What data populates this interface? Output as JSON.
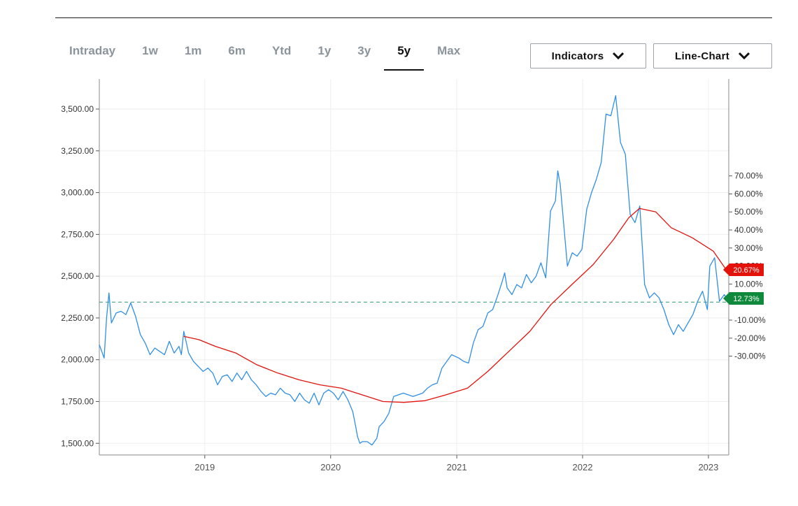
{
  "range_tabs": [
    {
      "label": "Intraday"
    },
    {
      "label": "1w"
    },
    {
      "label": "1m"
    },
    {
      "label": "6m"
    },
    {
      "label": "Ytd"
    },
    {
      "label": "1y"
    },
    {
      "label": "3y"
    },
    {
      "label": "5y"
    },
    {
      "label": "Max"
    }
  ],
  "active_range": "5y",
  "controls": {
    "indicators_label": "Indicators",
    "chart_type_label": "Line-Chart",
    "chevron_icon": "chevron-down-icon"
  },
  "colors": {
    "price_line": "#2f8fe6",
    "moving_average": "#e3120b",
    "reference_line": "#2a9a6a",
    "percent_flag": "#e3120b",
    "last_flag": "#0f8a3c"
  },
  "chart_data": {
    "type": "line",
    "title": "",
    "x_tick_labels": [
      "2019",
      "2020",
      "2021",
      "2022",
      "2023"
    ],
    "left_axis": {
      "ylim": [
        1430,
        3680
      ],
      "tick_labels": [
        "3,500.00",
        "3,250.00",
        "3,000.00",
        "2,750.00",
        "2,500.00",
        "2,250.00",
        "2,000.00",
        "1,750.00",
        "1,500.00"
      ]
    },
    "right_axis": {
      "tick_labels": [
        "70.00%",
        "60.00%",
        "50.00%",
        "40.00%",
        "30.00%",
        "20.00%",
        "10.00%",
        "0.00%",
        "-10.00%",
        "-20.00%",
        "-30.00%"
      ]
    },
    "reference_line": {
      "value": 2345,
      "style": "dashed"
    },
    "flags": {
      "moving_average_value": "20.67%",
      "last_value": "12.73%"
    },
    "series": [
      {
        "key": "price",
        "points": [
          [
            "2018-03-01",
            2090
          ],
          [
            "2018-03-15",
            2010
          ],
          [
            "2018-03-22",
            2250
          ],
          [
            "2018-03-29",
            2400
          ],
          [
            "2018-04-05",
            2220
          ],
          [
            "2018-04-19",
            2280
          ],
          [
            "2018-05-03",
            2290
          ],
          [
            "2018-05-17",
            2270
          ],
          [
            "2018-05-31",
            2340
          ],
          [
            "2018-06-14",
            2260
          ],
          [
            "2018-06-28",
            2150
          ],
          [
            "2018-07-12",
            2100
          ],
          [
            "2018-07-26",
            2030
          ],
          [
            "2018-08-09",
            2070
          ],
          [
            "2018-08-23",
            2050
          ],
          [
            "2018-09-06",
            2030
          ],
          [
            "2018-09-20",
            2110
          ],
          [
            "2018-10-04",
            2040
          ],
          [
            "2018-10-18",
            2080
          ],
          [
            "2018-10-25",
            2030
          ],
          [
            "2018-11-01",
            2170
          ],
          [
            "2018-11-15",
            2040
          ],
          [
            "2018-11-29",
            1990
          ],
          [
            "2018-12-13",
            1960
          ],
          [
            "2018-12-27",
            1930
          ],
          [
            "2019-01-10",
            1950
          ],
          [
            "2019-01-24",
            1920
          ],
          [
            "2019-02-07",
            1850
          ],
          [
            "2019-02-21",
            1900
          ],
          [
            "2019-03-07",
            1910
          ],
          [
            "2019-03-21",
            1870
          ],
          [
            "2019-04-04",
            1920
          ],
          [
            "2019-04-18",
            1880
          ],
          [
            "2019-05-02",
            1930
          ],
          [
            "2019-05-16",
            1880
          ],
          [
            "2019-05-30",
            1850
          ],
          [
            "2019-06-13",
            1810
          ],
          [
            "2019-06-27",
            1780
          ],
          [
            "2019-07-11",
            1800
          ],
          [
            "2019-07-25",
            1790
          ],
          [
            "2019-08-08",
            1830
          ],
          [
            "2019-08-22",
            1800
          ],
          [
            "2019-09-05",
            1790
          ],
          [
            "2019-09-19",
            1750
          ],
          [
            "2019-10-03",
            1800
          ],
          [
            "2019-10-17",
            1760
          ],
          [
            "2019-10-31",
            1740
          ],
          [
            "2019-11-14",
            1800
          ],
          [
            "2019-11-28",
            1730
          ],
          [
            "2019-12-12",
            1800
          ],
          [
            "2019-12-26",
            1820
          ],
          [
            "2020-01-09",
            1800
          ],
          [
            "2020-01-23",
            1760
          ],
          [
            "2020-02-06",
            1810
          ],
          [
            "2020-02-20",
            1760
          ],
          [
            "2020-03-05",
            1690
          ],
          [
            "2020-03-12",
            1620
          ],
          [
            "2020-03-19",
            1540
          ],
          [
            "2020-03-26",
            1500
          ],
          [
            "2020-04-02",
            1510
          ],
          [
            "2020-04-16",
            1510
          ],
          [
            "2020-04-30",
            1490
          ],
          [
            "2020-05-14",
            1530
          ],
          [
            "2020-05-21",
            1600
          ],
          [
            "2020-06-04",
            1630
          ],
          [
            "2020-06-18",
            1680
          ],
          [
            "2020-07-02",
            1780
          ],
          [
            "2020-07-16",
            1790
          ],
          [
            "2020-07-30",
            1800
          ],
          [
            "2020-08-13",
            1790
          ],
          [
            "2020-08-27",
            1780
          ],
          [
            "2020-09-10",
            1790
          ],
          [
            "2020-09-24",
            1800
          ],
          [
            "2020-10-08",
            1830
          ],
          [
            "2020-10-22",
            1850
          ],
          [
            "2020-11-05",
            1860
          ],
          [
            "2020-11-19",
            1950
          ],
          [
            "2020-12-03",
            1990
          ],
          [
            "2020-12-17",
            2030
          ],
          [
            "2021-01-07",
            2010
          ],
          [
            "2021-01-21",
            1990
          ],
          [
            "2021-02-04",
            1980
          ],
          [
            "2021-02-18",
            2100
          ],
          [
            "2021-03-04",
            2180
          ],
          [
            "2021-03-18",
            2200
          ],
          [
            "2021-04-01",
            2280
          ],
          [
            "2021-04-15",
            2300
          ],
          [
            "2021-04-29",
            2380
          ],
          [
            "2021-05-13",
            2470
          ],
          [
            "2021-05-20",
            2520
          ],
          [
            "2021-05-27",
            2430
          ],
          [
            "2021-06-10",
            2390
          ],
          [
            "2021-06-24",
            2450
          ],
          [
            "2021-07-08",
            2430
          ],
          [
            "2021-07-22",
            2510
          ],
          [
            "2021-08-05",
            2460
          ],
          [
            "2021-08-19",
            2500
          ],
          [
            "2021-09-02",
            2580
          ],
          [
            "2021-09-16",
            2490
          ],
          [
            "2021-09-30",
            2890
          ],
          [
            "2021-10-14",
            2950
          ],
          [
            "2021-10-21",
            3130
          ],
          [
            "2021-10-28",
            3050
          ],
          [
            "2021-11-11",
            2720
          ],
          [
            "2021-11-18",
            2560
          ],
          [
            "2021-12-02",
            2640
          ],
          [
            "2021-12-16",
            2620
          ],
          [
            "2021-12-30",
            2660
          ],
          [
            "2022-01-13",
            2900
          ],
          [
            "2022-01-27",
            3000
          ],
          [
            "2022-02-10",
            3080
          ],
          [
            "2022-02-24",
            3180
          ],
          [
            "2022-03-10",
            3470
          ],
          [
            "2022-03-24",
            3460
          ],
          [
            "2022-04-07",
            3580
          ],
          [
            "2022-04-21",
            3300
          ],
          [
            "2022-05-05",
            3230
          ],
          [
            "2022-05-19",
            2870
          ],
          [
            "2022-06-02",
            2820
          ],
          [
            "2022-06-16",
            2920
          ],
          [
            "2022-06-30",
            2450
          ],
          [
            "2022-07-14",
            2370
          ],
          [
            "2022-07-28",
            2400
          ],
          [
            "2022-08-11",
            2370
          ],
          [
            "2022-08-25",
            2300
          ],
          [
            "2022-09-08",
            2210
          ],
          [
            "2022-09-22",
            2150
          ],
          [
            "2022-10-06",
            2210
          ],
          [
            "2022-10-20",
            2170
          ],
          [
            "2022-11-03",
            2220
          ],
          [
            "2022-11-17",
            2270
          ],
          [
            "2022-12-01",
            2350
          ],
          [
            "2022-12-15",
            2410
          ],
          [
            "2022-12-29",
            2300
          ],
          [
            "2023-01-05",
            2560
          ],
          [
            "2023-01-19",
            2610
          ],
          [
            "2023-02-02",
            2350
          ],
          [
            "2023-02-16",
            2390
          ],
          [
            "2023-02-28",
            2345
          ]
        ]
      },
      {
        "key": "moving_average",
        "points": [
          [
            "2018-11-01",
            2140
          ],
          [
            "2018-12-15",
            2120
          ],
          [
            "2019-02-01",
            2080
          ],
          [
            "2019-04-01",
            2040
          ],
          [
            "2019-06-01",
            1970
          ],
          [
            "2019-08-01",
            1920
          ],
          [
            "2019-10-01",
            1880
          ],
          [
            "2019-12-01",
            1850
          ],
          [
            "2020-02-01",
            1830
          ],
          [
            "2020-04-01",
            1790
          ],
          [
            "2020-06-01",
            1750
          ],
          [
            "2020-08-01",
            1745
          ],
          [
            "2020-10-01",
            1755
          ],
          [
            "2020-12-01",
            1790
          ],
          [
            "2021-02-01",
            1830
          ],
          [
            "2021-04-01",
            1930
          ],
          [
            "2021-06-01",
            2050
          ],
          [
            "2021-08-01",
            2170
          ],
          [
            "2021-10-01",
            2330
          ],
          [
            "2021-12-01",
            2450
          ],
          [
            "2022-02-01",
            2570
          ],
          [
            "2022-04-01",
            2720
          ],
          [
            "2022-05-15",
            2850
          ],
          [
            "2022-06-15",
            2905
          ],
          [
            "2022-08-01",
            2885
          ],
          [
            "2022-09-15",
            2790
          ],
          [
            "2022-11-15",
            2730
          ],
          [
            "2023-01-15",
            2650
          ],
          [
            "2023-02-28",
            2520
          ]
        ]
      }
    ]
  }
}
